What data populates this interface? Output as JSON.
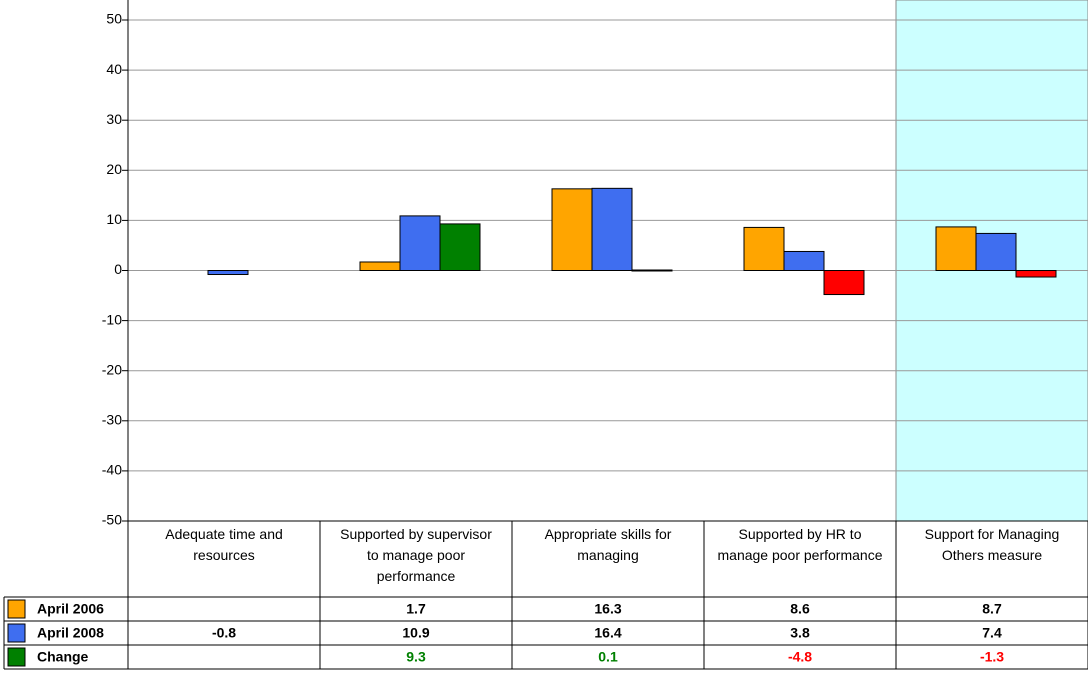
{
  "chart_data": {
    "type": "bar",
    "categories": [
      "Adequate time and resources",
      "Supported by supervisor to manage poor performance",
      "Appropriate skills for managing",
      "Supported by HR to manage poor performance",
      "Support for Managing Others measure"
    ],
    "series": [
      {
        "name": "April 2006",
        "color": "#ffa500",
        "values": [
          null,
          1.7,
          16.3,
          8.6,
          8.7
        ]
      },
      {
        "name": "April 2008",
        "color": "#3f6ef0",
        "values": [
          -0.8,
          10.9,
          16.4,
          3.8,
          7.4
        ]
      },
      {
        "name": "Change",
        "color": "#008000",
        "negative_color": "#ff0000",
        "values": [
          null,
          9.3,
          0.1,
          -4.8,
          -1.3
        ]
      }
    ],
    "ylim": [
      -50,
      50
    ],
    "yticks": [
      -50,
      -40,
      -30,
      -20,
      -10,
      0,
      10,
      20,
      30,
      40,
      50
    ],
    "grid": true,
    "highlight_category": 4,
    "highlight_color": "#ccffff"
  }
}
